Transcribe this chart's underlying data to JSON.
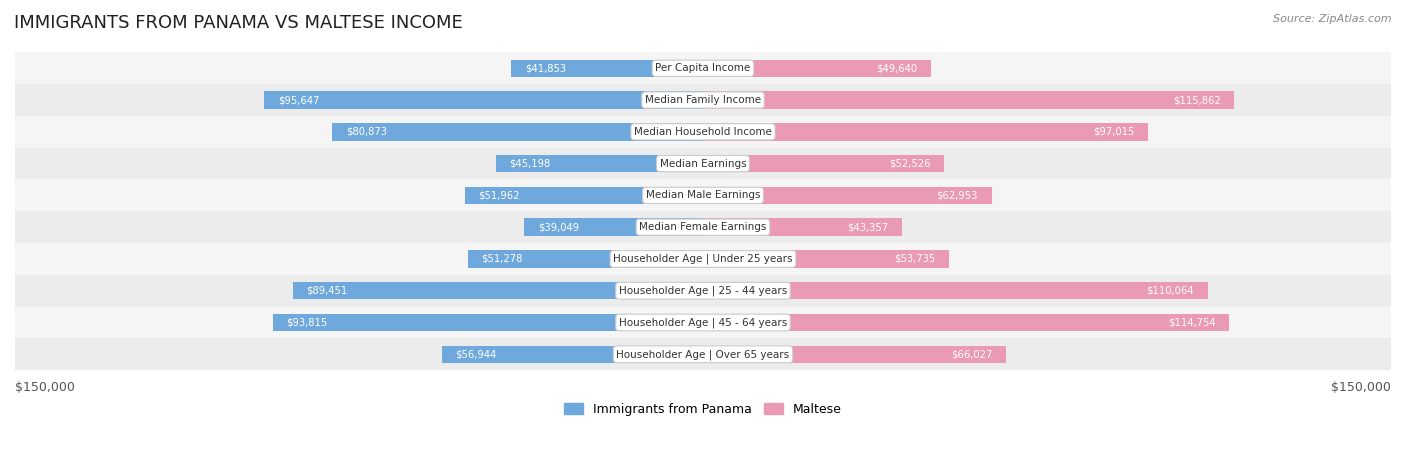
{
  "title": "IMMIGRANTS FROM PANAMA VS MALTESE INCOME",
  "source": "Source: ZipAtlas.com",
  "categories": [
    "Per Capita Income",
    "Median Family Income",
    "Median Household Income",
    "Median Earnings",
    "Median Male Earnings",
    "Median Female Earnings",
    "Householder Age | Under 25 years",
    "Householder Age | 25 - 44 years",
    "Householder Age | 45 - 64 years",
    "Householder Age | Over 65 years"
  ],
  "panama_values": [
    41853,
    95647,
    80873,
    45198,
    51962,
    39049,
    51278,
    89451,
    93815,
    56944
  ],
  "maltese_values": [
    49640,
    115862,
    97015,
    52526,
    62953,
    43357,
    53735,
    110064,
    114754,
    66027
  ],
  "panama_labels": [
    "$41,853",
    "$95,647",
    "$80,873",
    "$45,198",
    "$51,962",
    "$39,049",
    "$51,278",
    "$89,451",
    "$93,815",
    "$56,944"
  ],
  "maltese_labels": [
    "$49,640",
    "$115,862",
    "$97,015",
    "$52,526",
    "$62,953",
    "$43,357",
    "$53,735",
    "$110,064",
    "$114,754",
    "$66,027"
  ],
  "panama_color": "#6fa8dc",
  "maltese_color": "#ea9ab2",
  "panama_color_dark": "#4a86c8",
  "maltese_color_dark": "#e06090",
  "max_value": 150000,
  "bg_color": "#ffffff",
  "row_bg_color": "#f0f0f0",
  "label_color_inside": "#ffffff",
  "label_color_outside": "#555555",
  "legend_panama": "Immigrants from Panama",
  "legend_maltese": "Maltese",
  "xlabel_left": "$150,000",
  "xlabel_right": "$150,000"
}
